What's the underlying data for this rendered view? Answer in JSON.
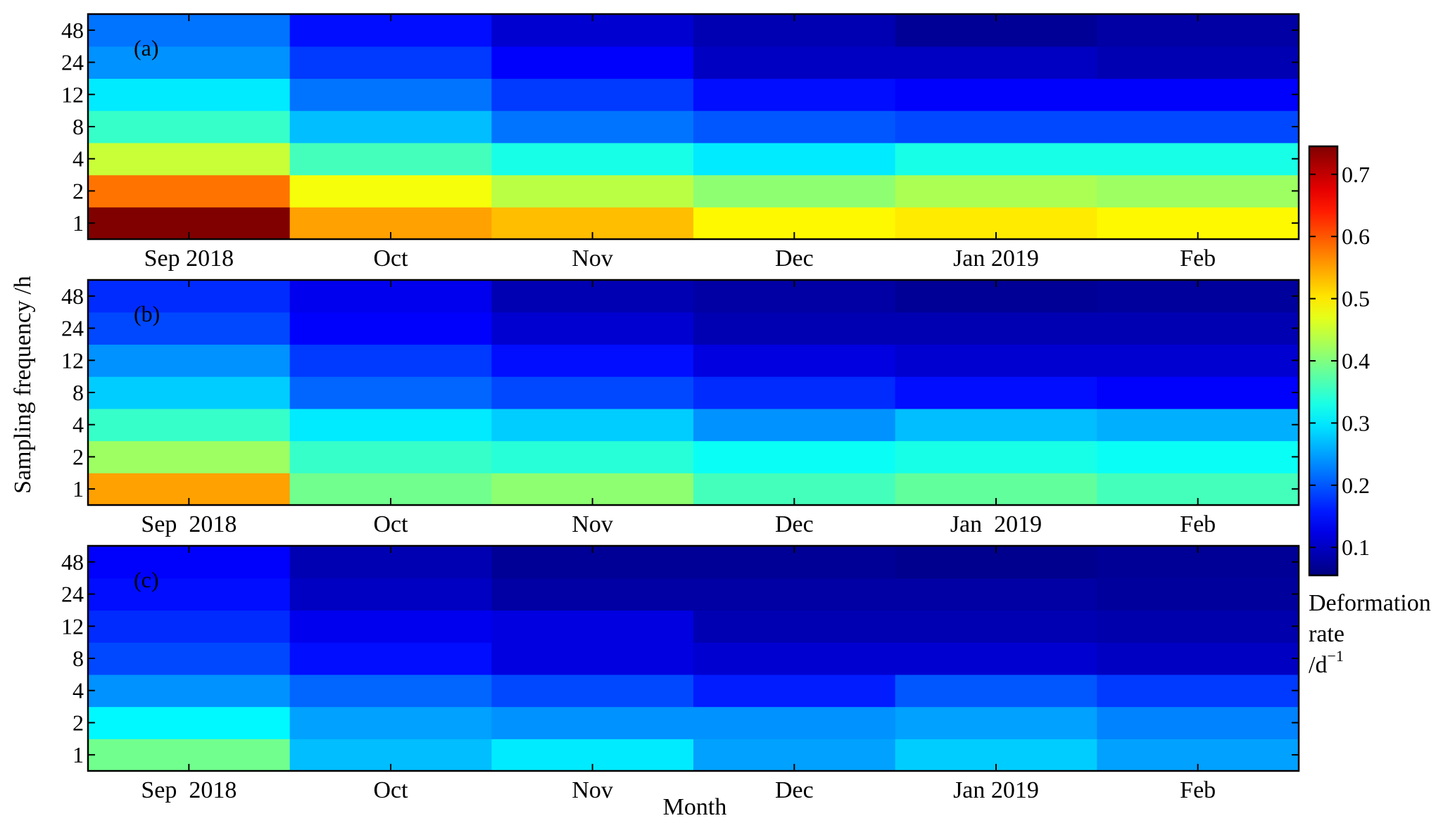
{
  "chart_data": {
    "type": "heatmap",
    "ylabel": "Sampling frequency /h",
    "xlabel": "Month",
    "y_ticks": [
      "1",
      "2",
      "4",
      "8",
      "12",
      "24",
      "48"
    ],
    "colormap": "jet",
    "colorbar": {
      "label_lines": [
        "Deformation",
        "rate"
      ],
      "unit_base": "/d",
      "unit_exponent": "−1",
      "range": [
        0.055,
        0.745
      ],
      "ticks": [
        "0.1",
        "0.2",
        "0.3",
        "0.4",
        "0.5",
        "0.6",
        "0.7"
      ],
      "tick_values": [
        0.1,
        0.2,
        0.3,
        0.4,
        0.5,
        0.6,
        0.7
      ]
    },
    "panels": [
      {
        "label": "(a)",
        "x_tick_labels": [
          "Sep 2018",
          "Oct",
          "Nov",
          "Dec",
          "Jan 2019",
          "Feb"
        ],
        "rows_bottom_to_top": [
          [
            0.745,
            0.55,
            0.53,
            0.49,
            0.5,
            0.49
          ],
          [
            0.58,
            0.48,
            0.44,
            0.41,
            0.43,
            0.42
          ],
          [
            0.45,
            0.36,
            0.33,
            0.3,
            0.33,
            0.33
          ],
          [
            0.35,
            0.27,
            0.22,
            0.2,
            0.19,
            0.19
          ],
          [
            0.3,
            0.22,
            0.18,
            0.15,
            0.14,
            0.14
          ],
          [
            0.24,
            0.18,
            0.14,
            0.1,
            0.1,
            0.09
          ],
          [
            0.22,
            0.15,
            0.11,
            0.09,
            0.07,
            0.08
          ]
        ]
      },
      {
        "label": "(b)",
        "x_tick_labels": [
          "Sep  2018",
          "Oct",
          "Nov",
          "Dec",
          "Jan  2019",
          "Feb"
        ],
        "rows_bottom_to_top": [
          [
            0.55,
            0.39,
            0.41,
            0.36,
            0.38,
            0.36
          ],
          [
            0.42,
            0.35,
            0.34,
            0.32,
            0.33,
            0.32
          ],
          [
            0.35,
            0.3,
            0.28,
            0.24,
            0.27,
            0.26
          ],
          [
            0.28,
            0.21,
            0.19,
            0.17,
            0.15,
            0.14
          ],
          [
            0.24,
            0.18,
            0.15,
            0.12,
            0.11,
            0.11
          ],
          [
            0.19,
            0.14,
            0.11,
            0.09,
            0.09,
            0.09
          ],
          [
            0.17,
            0.13,
            0.09,
            0.08,
            0.07,
            0.075
          ]
        ]
      },
      {
        "label": "(c)",
        "x_tick_labels": [
          "Sep  2018",
          "Oct",
          "Nov",
          "Dec",
          "Jan 2019",
          "Feb"
        ],
        "rows_bottom_to_top": [
          [
            0.39,
            0.27,
            0.3,
            0.25,
            0.28,
            0.25
          ],
          [
            0.31,
            0.25,
            0.24,
            0.24,
            0.25,
            0.23
          ],
          [
            0.24,
            0.21,
            0.19,
            0.16,
            0.2,
            0.18
          ],
          [
            0.19,
            0.15,
            0.12,
            0.11,
            0.11,
            0.1
          ],
          [
            0.17,
            0.13,
            0.12,
            0.09,
            0.09,
            0.085
          ],
          [
            0.15,
            0.1,
            0.08,
            0.08,
            0.08,
            0.075
          ],
          [
            0.14,
            0.09,
            0.07,
            0.07,
            0.065,
            0.07
          ]
        ]
      }
    ]
  }
}
